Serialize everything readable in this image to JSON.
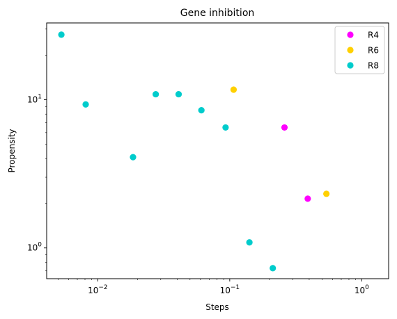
{
  "chart_data": {
    "type": "scatter",
    "title": "Gene inhibition",
    "xlabel": "Steps",
    "ylabel": "Propensity",
    "xscale": "log",
    "yscale": "log",
    "xlim": [
      0.0041,
      1.6
    ],
    "ylim": [
      0.62,
      33
    ],
    "grid": false,
    "legend_position": "top-right",
    "x_ticks": [
      {
        "value": 0.01,
        "base": "10",
        "exp": "−2"
      },
      {
        "value": 0.1,
        "base": "10",
        "exp": "−1"
      },
      {
        "value": 1,
        "base": "10",
        "exp": "0"
      }
    ],
    "y_ticks": [
      {
        "value": 1,
        "base": "10",
        "exp": "0"
      },
      {
        "value": 10,
        "base": "10",
        "exp": "1"
      }
    ],
    "series": [
      {
        "name": "R4",
        "color": "#ff00ff",
        "points": [
          [
            0.26,
            6.5
          ],
          [
            0.39,
            2.15
          ]
        ]
      },
      {
        "name": "R6",
        "color": "#ffd000",
        "points": [
          [
            0.107,
            11.7
          ],
          [
            0.54,
            2.32
          ]
        ]
      },
      {
        "name": "R8",
        "color": "#00cccc",
        "points": [
          [
            0.0053,
            27.5
          ],
          [
            0.0081,
            9.3
          ],
          [
            0.0185,
            4.1
          ],
          [
            0.0275,
            10.9
          ],
          [
            0.041,
            10.9
          ],
          [
            0.061,
            8.5
          ],
          [
            0.093,
            6.5
          ],
          [
            0.141,
            1.09
          ],
          [
            0.212,
            0.73
          ]
        ]
      }
    ]
  }
}
